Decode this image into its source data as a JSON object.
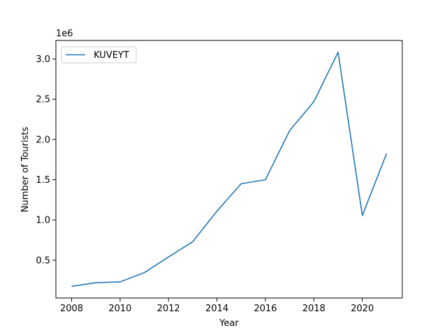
{
  "chart_data": {
    "type": "line",
    "xlabel": "Year",
    "ylabel": "Number of Tourists",
    "y_offset_label": "1e6",
    "xlim": [
      2007.35,
      2021.65
    ],
    "ylim": [
      30000,
      3230000
    ],
    "x_ticks": [
      2008,
      2010,
      2012,
      2014,
      2016,
      2018,
      2020
    ],
    "x_tick_labels": [
      "2008",
      "2010",
      "2012",
      "2014",
      "2016",
      "2018",
      "2020"
    ],
    "y_ticks": [
      500000,
      1000000,
      1500000,
      2000000,
      2500000,
      3000000
    ],
    "y_tick_labels": [
      "0.5",
      "1.0",
      "1.5",
      "2.0",
      "2.5",
      "3.0"
    ],
    "legend_position": "top-left",
    "grid": false,
    "series": [
      {
        "name": " KUVEYT",
        "color": "#1f77b4",
        "x": [
          2008,
          2009,
          2010,
          2011,
          2012,
          2013,
          2014,
          2015,
          2016,
          2017,
          2018,
          2019,
          2020,
          2021
        ],
        "values": [
          175000,
          220000,
          230000,
          345000,
          540000,
          730000,
          1110000,
          1450000,
          1500000,
          2110000,
          2470000,
          3085000,
          1055000,
          1825000
        ]
      }
    ]
  }
}
